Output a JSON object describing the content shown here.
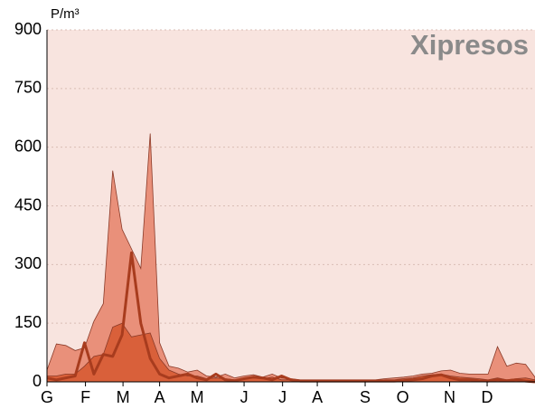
{
  "chart_data": {
    "type": "area",
    "title": "Xipresos",
    "y_label": "P/m³",
    "x": [
      0,
      1,
      2,
      3,
      4,
      5,
      6,
      7,
      8,
      9,
      10,
      11,
      12,
      13,
      14,
      15,
      16,
      17,
      18,
      19,
      20,
      21,
      22,
      23,
      24,
      25,
      26,
      27,
      28,
      29,
      30,
      31,
      32,
      33,
      34,
      35,
      36,
      37,
      38,
      39,
      40,
      41,
      42,
      43,
      44,
      45,
      46,
      47,
      48,
      49,
      50,
      51,
      52
    ],
    "series": [
      {
        "type": "area",
        "color": "#e9907a",
        "values": [
          30,
          97,
          93,
          80,
          87,
          155,
          200,
          540,
          390,
          340,
          290,
          635,
          100,
          40,
          35,
          25,
          30,
          15,
          12,
          20,
          10,
          15,
          18,
          12,
          20,
          10,
          8,
          5,
          5,
          5,
          5,
          5,
          5,
          5,
          5,
          5,
          8,
          10,
          12,
          15,
          20,
          22,
          28,
          30,
          22,
          20,
          20,
          20,
          90,
          40,
          48,
          45,
          12
        ]
      },
      {
        "type": "area",
        "color": "#d9603a",
        "values": [
          15,
          15,
          20,
          20,
          40,
          65,
          70,
          140,
          150,
          115,
          120,
          125,
          60,
          30,
          20,
          15,
          15,
          8,
          10,
          8,
          5,
          8,
          10,
          8,
          12,
          5,
          5,
          3,
          3,
          3,
          3,
          3,
          3,
          3,
          3,
          3,
          5,
          5,
          8,
          10,
          15,
          18,
          20,
          15,
          12,
          10,
          8,
          5,
          10,
          5,
          8,
          10,
          5
        ]
      },
      {
        "type": "line",
        "color": "#a83c1e",
        "values": [
          10,
          5,
          10,
          15,
          100,
          20,
          70,
          65,
          120,
          330,
          150,
          60,
          20,
          10,
          15,
          20,
          10,
          5,
          20,
          5,
          3,
          8,
          12,
          10,
          5,
          15,
          5,
          2,
          2,
          2,
          2,
          2,
          2,
          2,
          2,
          2,
          2,
          2,
          3,
          5,
          8,
          15,
          18,
          10,
          5,
          5,
          3,
          2,
          5,
          3,
          5,
          2,
          0
        ]
      }
    ],
    "xlim": [
      0,
      52
    ],
    "ylim": [
      0,
      900
    ],
    "xticks": [
      {
        "value": 0,
        "label": "G"
      },
      {
        "value": 4.1,
        "label": "F"
      },
      {
        "value": 8.1,
        "label": "M"
      },
      {
        "value": 12,
        "label": "A"
      },
      {
        "value": 16,
        "label": "M"
      },
      {
        "value": 21,
        "label": "J"
      },
      {
        "value": 25.1,
        "label": "J"
      },
      {
        "value": 28.8,
        "label": "A"
      },
      {
        "value": 33.9,
        "label": "S"
      },
      {
        "value": 37.9,
        "label": "O"
      },
      {
        "value": 42.9,
        "label": "N"
      },
      {
        "value": 46.9,
        "label": "D"
      }
    ],
    "yticks": [
      0,
      150,
      300,
      450,
      600,
      750,
      900
    ],
    "grid": true
  }
}
